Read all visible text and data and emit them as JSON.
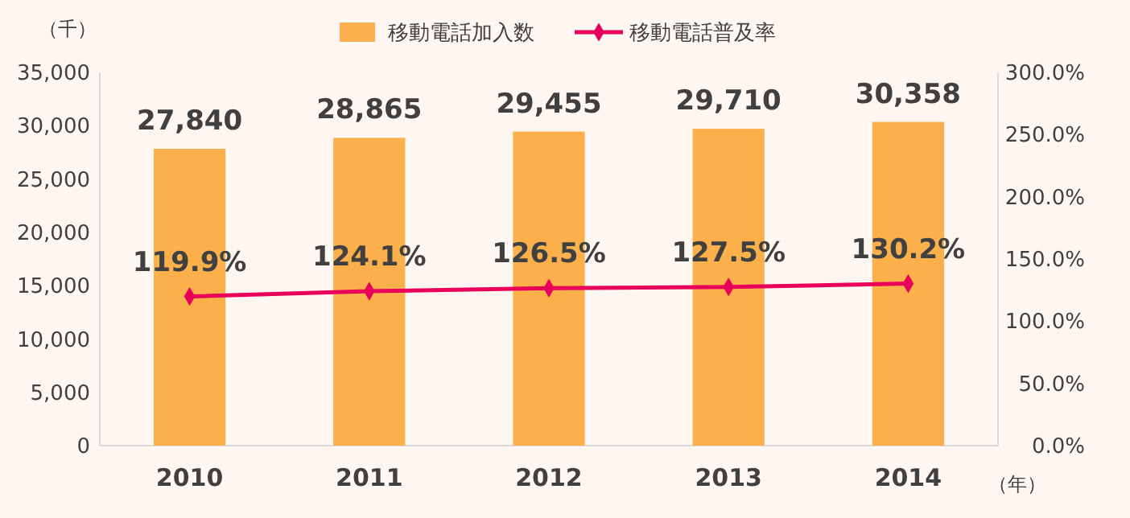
{
  "chart_data": {
    "type": "bar",
    "categories": [
      "2010",
      "2011",
      "2012",
      "2013",
      "2014"
    ],
    "ylabel": "（千）",
    "xlabel": "（年）",
    "series": [
      {
        "name": "移動電話加入数",
        "color": "#fbb04c",
        "values": [
          27840,
          28865,
          29455,
          29710,
          30358
        ],
        "value_labels": [
          "27,840",
          "28,865",
          "29,455",
          "29,710",
          "30,358"
        ]
      },
      {
        "name": "移動電話普及率",
        "type": "line",
        "axis": "y2",
        "color": "#e8005a",
        "marker": "diamond",
        "values": [
          119.9,
          124.1,
          126.5,
          127.5,
          130.2
        ],
        "value_labels": [
          "119.9%",
          "124.1%",
          "126.5%",
          "127.5%",
          "130.2%"
        ]
      }
    ],
    "ylim": [
      0,
      35000
    ],
    "yticks": [
      0,
      {
        "value": 5000,
        "label": "5,000"
      },
      {
        "value": 10000,
        "label": "10,000"
      },
      {
        "value": 15000,
        "label": "15,000"
      },
      {
        "value": 20000,
        "label": "20,000"
      },
      {
        "value": 25000,
        "label": "25,000"
      },
      {
        "value": 30000,
        "label": "30,000"
      },
      {
        "value": 35000,
        "label": "35,000"
      }
    ],
    "y2lim": [
      0,
      300
    ],
    "y2ticks": [
      {
        "value": 0,
        "label": "0.0%"
      },
      {
        "value": 50,
        "label": "50.0%"
      },
      {
        "value": 100,
        "label": "100.0%"
      },
      {
        "value": 150,
        "label": "150.0%"
      },
      {
        "value": 200,
        "label": "200.0%"
      },
      {
        "value": 250,
        "label": "250.0%"
      },
      {
        "value": 300,
        "label": "300.0%"
      }
    ],
    "legend": "top",
    "grid": false
  }
}
